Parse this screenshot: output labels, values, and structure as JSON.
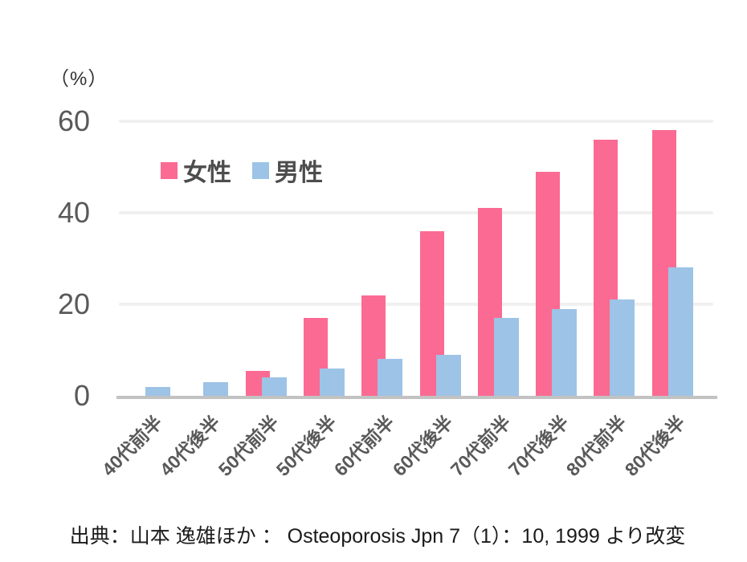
{
  "chart_data": {
    "type": "bar",
    "title": "",
    "unit_label": "（%）",
    "categories": [
      "40代前半",
      "40代後半",
      "50代前半",
      "50代後半",
      "60代前半",
      "60代後半",
      "70代前半",
      "70代後半",
      "80代前半",
      "80代後半"
    ],
    "series": [
      {
        "name": "女性",
        "color": "#FB6A92",
        "values": [
          0,
          0,
          5.5,
          17,
          22,
          36,
          41,
          49,
          56,
          58
        ]
      },
      {
        "name": "男性",
        "color": "#9DC3E6",
        "values": [
          2,
          3,
          4,
          6,
          8,
          9,
          17,
          19,
          21,
          28
        ]
      }
    ],
    "ylim": [
      0,
      60
    ],
    "yticks": [
      0,
      20,
      40,
      60
    ],
    "grid": true,
    "legend_position": "top-left-inside"
  },
  "source_note": "出典：山本 逸雄ほか ： Osteoporosis Jpn 7（1）：10, 1999 より改変",
  "colors": {
    "female": "#FB6A92",
    "male": "#9DC3E6",
    "gridline": "#F0F0F0",
    "axis_line": "#C2C2C2",
    "tick_text": "#595959",
    "legend_text": "#4D4D4D",
    "source_text": "#1A1A1A"
  }
}
